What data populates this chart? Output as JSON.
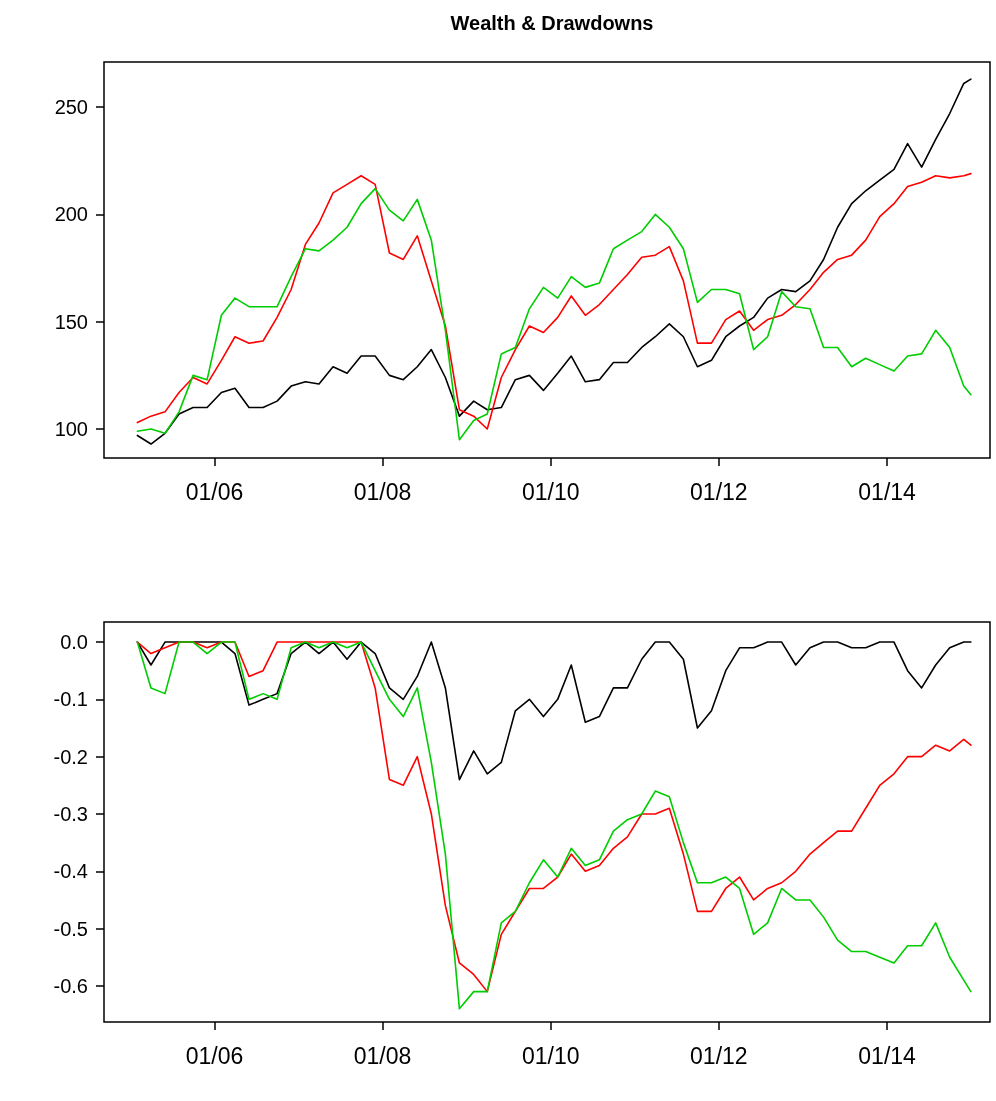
{
  "chart_data": [
    {
      "type": "line",
      "title": "Wealth & Drawdowns",
      "x": [
        "2005-01-31",
        "2005-03-31",
        "2005-05-31",
        "2005-07-31",
        "2005-09-30",
        "2005-11-30",
        "2006-01-31",
        "2006-03-31",
        "2006-05-31",
        "2006-07-31",
        "2006-09-30",
        "2006-11-30",
        "2007-01-31",
        "2007-03-31",
        "2007-05-31",
        "2007-07-31",
        "2007-09-30",
        "2007-11-30",
        "2008-01-31",
        "2008-03-31",
        "2008-05-31",
        "2008-07-31",
        "2008-09-30",
        "2008-11-30",
        "2009-01-31",
        "2009-03-31",
        "2009-05-31",
        "2009-07-31",
        "2009-09-30",
        "2009-11-30",
        "2010-01-31",
        "2010-03-31",
        "2010-05-31",
        "2010-07-31",
        "2010-09-30",
        "2010-11-30",
        "2011-01-31",
        "2011-03-31",
        "2011-05-31",
        "2011-07-31",
        "2011-09-30",
        "2011-11-30",
        "2012-01-31",
        "2012-03-31",
        "2012-05-31",
        "2012-07-31",
        "2012-09-30",
        "2012-11-30",
        "2013-01-31",
        "2013-03-31",
        "2013-05-31",
        "2013-07-31",
        "2013-09-30",
        "2013-11-30",
        "2014-01-31",
        "2014-03-31",
        "2014-05-31",
        "2014-07-31",
        "2014-09-30",
        "2014-11-30",
        "2014-12-31"
      ],
      "series": [
        {
          "color": "#000000",
          "values": [
            97,
            93,
            98,
            107,
            110,
            110,
            117,
            119,
            110,
            110,
            113,
            120,
            122,
            121,
            129,
            126,
            134,
            134,
            125,
            123,
            129,
            137,
            124,
            106,
            113,
            109,
            110,
            123,
            125,
            118,
            126,
            134,
            122,
            123,
            131,
            131,
            138,
            143,
            149,
            143,
            129,
            132,
            143,
            148,
            152,
            161,
            165,
            164,
            169,
            179,
            194,
            205,
            211,
            216,
            221,
            233,
            222,
            235,
            247,
            261,
            263
          ]
        },
        {
          "color": "#ff0000",
          "values": [
            103,
            106,
            108,
            117,
            124,
            121,
            132,
            143,
            140,
            141,
            152,
            165,
            186,
            196,
            210,
            214,
            218,
            214,
            182,
            179,
            190,
            169,
            148,
            109,
            106,
            100,
            124,
            137,
            148,
            145,
            152,
            162,
            153,
            158,
            165,
            172,
            180,
            181,
            185,
            169,
            140,
            140,
            151,
            155,
            146,
            151,
            153,
            158,
            165,
            173,
            179,
            181,
            188,
            199,
            205,
            213,
            215,
            218,
            217,
            218,
            219
          ]
        },
        {
          "color": "#00cd00",
          "values": [
            99,
            100,
            98,
            108,
            125,
            123,
            153,
            161,
            157,
            157,
            157,
            171,
            184,
            183,
            188,
            194,
            205,
            212,
            202,
            197,
            207,
            188,
            146,
            95,
            104,
            107,
            135,
            138,
            156,
            166,
            161,
            171,
            166,
            168,
            184,
            188,
            192,
            200,
            194,
            184,
            159,
            165,
            165,
            163,
            137,
            143,
            164,
            157,
            156,
            138,
            138,
            129,
            133,
            130,
            127,
            134,
            135,
            146,
            138,
            120,
            116
          ]
        }
      ],
      "xlim": [
        "2004-09-08",
        "2015-03-24"
      ],
      "xticks": [
        {
          "value": "2006-01-01",
          "label": "01/06"
        },
        {
          "value": "2008-01-01",
          "label": "01/08"
        },
        {
          "value": "2010-01-01",
          "label": "01/10"
        },
        {
          "value": "2012-01-01",
          "label": "01/12"
        },
        {
          "value": "2014-01-01",
          "label": "01/14"
        }
      ],
      "ylim": [
        86.5,
        271
      ],
      "yticks": [
        100,
        150,
        200,
        250
      ]
    },
    {
      "type": "line",
      "x": [
        "2005-01-31",
        "2005-03-31",
        "2005-05-31",
        "2005-07-31",
        "2005-09-30",
        "2005-11-30",
        "2006-01-31",
        "2006-03-31",
        "2006-05-31",
        "2006-07-31",
        "2006-09-30",
        "2006-11-30",
        "2007-01-31",
        "2007-03-31",
        "2007-05-31",
        "2007-07-31",
        "2007-09-30",
        "2007-11-30",
        "2008-01-31",
        "2008-03-31",
        "2008-05-31",
        "2008-07-31",
        "2008-09-30",
        "2008-11-30",
        "2009-01-31",
        "2009-03-31",
        "2009-05-31",
        "2009-07-31",
        "2009-09-30",
        "2009-11-30",
        "2010-01-31",
        "2010-03-31",
        "2010-05-31",
        "2010-07-31",
        "2010-09-30",
        "2010-11-30",
        "2011-01-31",
        "2011-03-31",
        "2011-05-31",
        "2011-07-31",
        "2011-09-30",
        "2011-11-30",
        "2012-01-31",
        "2012-03-31",
        "2012-05-31",
        "2012-07-31",
        "2012-09-30",
        "2012-11-30",
        "2013-01-31",
        "2013-03-31",
        "2013-05-31",
        "2013-07-31",
        "2013-09-30",
        "2013-11-30",
        "2014-01-31",
        "2014-03-31",
        "2014-05-31",
        "2014-07-31",
        "2014-09-30",
        "2014-11-30",
        "2014-12-31"
      ],
      "series": [
        {
          "color": "#000000",
          "values": [
            0,
            -0.04,
            0,
            0,
            0,
            0,
            0,
            -0.02,
            -0.11,
            -0.1,
            -0.09,
            -0.02,
            0,
            -0.02,
            0,
            -0.03,
            0,
            -0.02,
            -0.08,
            -0.1,
            -0.06,
            0,
            -0.08,
            -0.24,
            -0.19,
            -0.23,
            -0.21,
            -0.12,
            -0.1,
            -0.13,
            -0.1,
            -0.04,
            -0.14,
            -0.13,
            -0.08,
            -0.08,
            -0.03,
            0,
            0,
            -0.03,
            -0.15,
            -0.12,
            -0.05,
            -0.01,
            -0.01,
            0,
            0,
            -0.04,
            -0.01,
            0,
            0,
            -0.01,
            -0.01,
            0,
            0,
            -0.05,
            -0.08,
            -0.04,
            -0.01,
            0,
            0
          ]
        },
        {
          "color": "#ff0000",
          "values": [
            0,
            -0.02,
            -0.01,
            0,
            0,
            -0.01,
            0,
            0,
            -0.06,
            -0.05,
            0,
            0,
            0,
            0,
            0,
            0,
            0,
            -0.08,
            -0.24,
            -0.25,
            -0.2,
            -0.3,
            -0.46,
            -0.56,
            -0.58,
            -0.61,
            -0.51,
            -0.47,
            -0.43,
            -0.43,
            -0.41,
            -0.37,
            -0.4,
            -0.39,
            -0.36,
            -0.34,
            -0.3,
            -0.3,
            -0.29,
            -0.37,
            -0.47,
            -0.47,
            -0.43,
            -0.41,
            -0.45,
            -0.43,
            -0.42,
            -0.4,
            -0.37,
            -0.35,
            -0.33,
            -0.33,
            -0.29,
            -0.25,
            -0.23,
            -0.2,
            -0.2,
            -0.18,
            -0.19,
            -0.17,
            -0.18
          ]
        },
        {
          "color": "#00cd00",
          "values": [
            0,
            -0.08,
            -0.09,
            0,
            0,
            -0.02,
            0,
            0,
            -0.1,
            -0.09,
            -0.1,
            -0.01,
            0,
            -0.01,
            0,
            -0.01,
            0,
            -0.05,
            -0.1,
            -0.13,
            -0.08,
            -0.21,
            -0.37,
            -0.64,
            -0.61,
            -0.61,
            -0.49,
            -0.47,
            -0.42,
            -0.38,
            -0.41,
            -0.36,
            -0.39,
            -0.38,
            -0.33,
            -0.31,
            -0.3,
            -0.26,
            -0.27,
            -0.35,
            -0.42,
            -0.42,
            -0.41,
            -0.43,
            -0.51,
            -0.49,
            -0.43,
            -0.45,
            -0.45,
            -0.48,
            -0.52,
            -0.54,
            -0.54,
            -0.55,
            -0.56,
            -0.53,
            -0.53,
            -0.49,
            -0.55,
            -0.59,
            -0.61
          ]
        }
      ],
      "xlim": [
        "2004-09-08",
        "2015-03-24"
      ],
      "xticks": [
        {
          "value": "2006-01-01",
          "label": "01/06"
        },
        {
          "value": "2008-01-01",
          "label": "01/08"
        },
        {
          "value": "2010-01-01",
          "label": "01/10"
        },
        {
          "value": "2012-01-01",
          "label": "01/12"
        },
        {
          "value": "2014-01-01",
          "label": "01/14"
        }
      ],
      "ylim": [
        -0.663,
        0.035
      ],
      "yticks": [
        {
          "value": 0,
          "label": "0.0"
        },
        -0.1,
        -0.2,
        -0.3,
        -0.4,
        -0.5,
        -0.6
      ]
    }
  ]
}
